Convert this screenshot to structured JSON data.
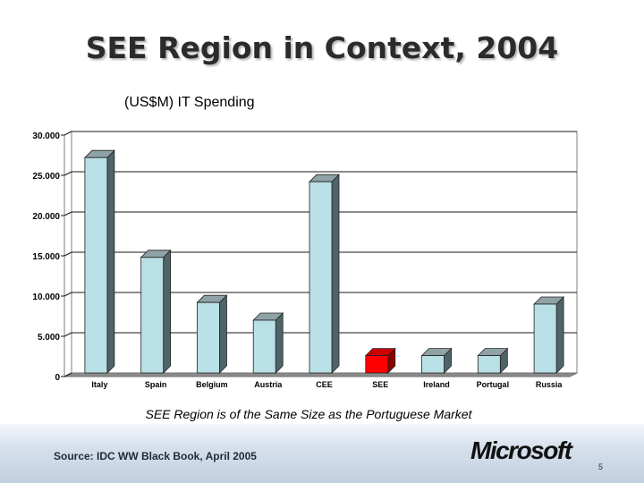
{
  "slide": {
    "title": "SEE Region in Context, 2004",
    "caption": "SEE Region is of the Same Size as the Portuguese Market",
    "source": "Source: IDC WW Black Book, April 2005",
    "logo_text": "Microsoft",
    "page_number": "5"
  },
  "chart_data": {
    "type": "bar",
    "title": "(US$M) IT Spending",
    "categories": [
      "Italy",
      "Spain",
      "Belgium",
      "Austria",
      "CEE",
      "SEE",
      "Ireland",
      "Portugal",
      "Russia"
    ],
    "values": [
      27200,
      14800,
      9200,
      7000,
      24200,
      2600,
      2600,
      2600,
      9000
    ],
    "highlight_index": 5,
    "ylim": [
      0,
      30000
    ],
    "yticks": [
      "0",
      "5.000",
      "10.000",
      "15.000",
      "20.000",
      "25.000",
      "30.000"
    ],
    "grid": true,
    "legend": "none",
    "colors": {
      "bar_front": "#b9e0e6",
      "bar_side": "#4f6468",
      "bar_top": "#8fa2a6",
      "highlight_front": "#ff0000",
      "highlight_side": "#8a0000",
      "highlight_top": "#cc0000"
    }
  }
}
